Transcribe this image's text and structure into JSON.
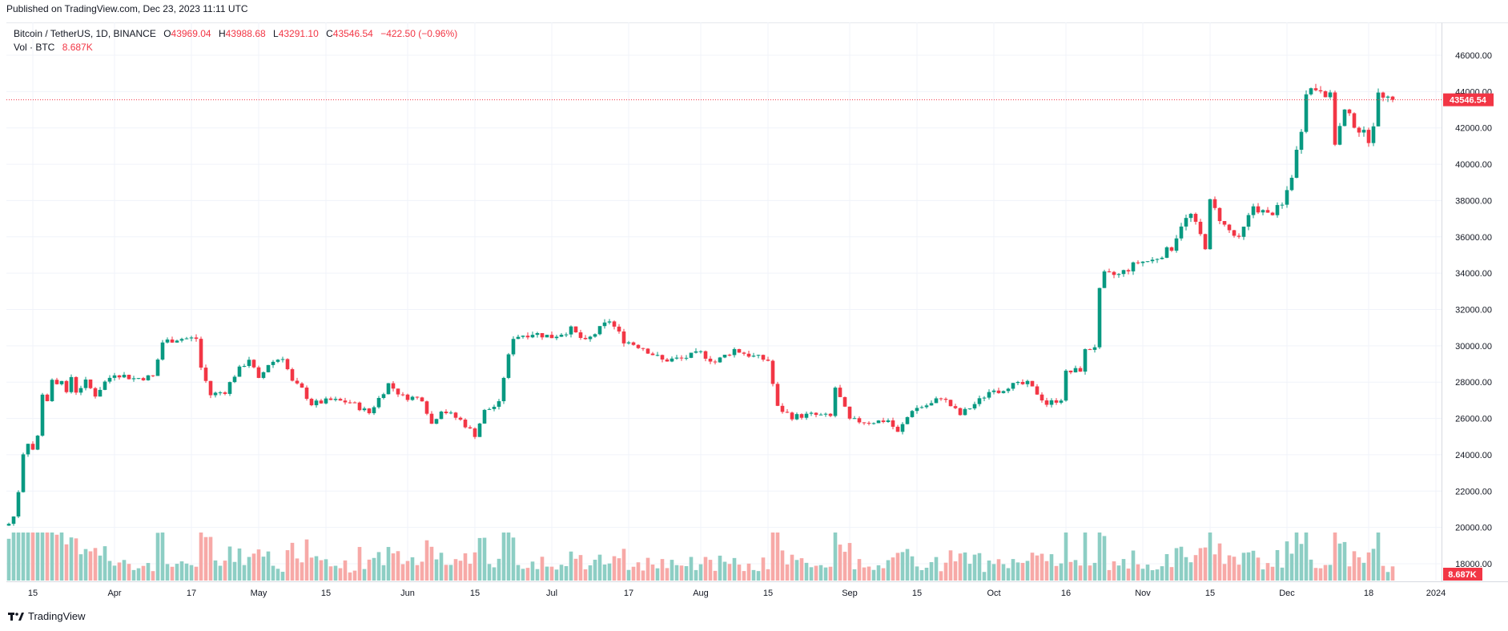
{
  "published": "Published on TradingView.com, Dec 23, 2023 11:11 UTC",
  "legend": {
    "symbol": "Bitcoin / TetherUS, 1D, BINANCE",
    "open_label": "O",
    "open": "43969.04",
    "high_label": "H",
    "high": "43988.68",
    "low_label": "L",
    "low": "43291.10",
    "close_label": "C",
    "close": "43546.54",
    "change": "−422.50 (−0.96%)",
    "volume_label": "Vol · BTC",
    "volume": "8.687K"
  },
  "footer": {
    "brand": "TradingView"
  },
  "colors": {
    "up": "#089981",
    "down": "#f23645",
    "up_volume": "#8dcec4",
    "down_volume": "#f7a9a7",
    "grid": "#f0f3fa",
    "last_price_line": "#f23645"
  },
  "chart_data": {
    "type": "candlestick",
    "symbol": "Bitcoin / TetherUS",
    "interval": "1D",
    "exchange": "BINANCE",
    "ylim": [
      17000,
      47000
    ],
    "y_ticks": [
      18000,
      20000,
      22000,
      24000,
      26000,
      28000,
      30000,
      32000,
      34000,
      36000,
      38000,
      40000,
      42000,
      44000,
      46000
    ],
    "y_tick_labels": [
      "18000.00",
      "20000.00",
      "22000.00",
      "24000.00",
      "26000.00",
      "28000.00",
      "30000.00",
      "32000.00",
      "34000.00",
      "36000.00",
      "38000.00",
      "40000.00",
      "42000.00",
      "44000.00",
      "46000.00"
    ],
    "x_ticks": [
      {
        "date": "2023-03-15",
        "label": "15"
      },
      {
        "date": "2023-04-01",
        "label": "Apr"
      },
      {
        "date": "2023-04-17",
        "label": "17"
      },
      {
        "date": "2023-05-01",
        "label": "May"
      },
      {
        "date": "2023-05-15",
        "label": "15"
      },
      {
        "date": "2023-06-01",
        "label": "Jun"
      },
      {
        "date": "2023-06-15",
        "label": "15"
      },
      {
        "date": "2023-07-01",
        "label": "Jul"
      },
      {
        "date": "2023-07-17",
        "label": "17"
      },
      {
        "date": "2023-08-01",
        "label": "Aug"
      },
      {
        "date": "2023-08-15",
        "label": "15"
      },
      {
        "date": "2023-09-01",
        "label": "Sep"
      },
      {
        "date": "2023-09-15",
        "label": "15"
      },
      {
        "date": "2023-10-01",
        "label": "Oct"
      },
      {
        "date": "2023-10-16",
        "label": "16"
      },
      {
        "date": "2023-11-01",
        "label": "Nov"
      },
      {
        "date": "2023-11-15",
        "label": "15"
      },
      {
        "date": "2023-12-01",
        "label": "Dec"
      },
      {
        "date": "2023-12-18",
        "label": "18"
      },
      {
        "date": "2024-01-01",
        "label": "2024"
      }
    ],
    "x_range": [
      "2023-03-10",
      "2024-01-01"
    ],
    "last_price": 43546.54,
    "last_price_label": "43546.54",
    "last_volume_label": "8.687K",
    "volume_max": 40,
    "close_path": [
      [
        "2023-03-10",
        20200
      ],
      [
        "2023-03-11",
        20600
      ],
      [
        "2023-03-12",
        22000
      ],
      [
        "2023-03-13",
        24100
      ],
      [
        "2023-03-14",
        24700
      ],
      [
        "2023-03-15",
        24300
      ],
      [
        "2023-03-16",
        25000
      ],
      [
        "2023-03-17",
        27400
      ],
      [
        "2023-03-18",
        27000
      ],
      [
        "2023-03-19",
        28000
      ],
      [
        "2023-03-20",
        27800
      ],
      [
        "2023-03-21",
        28200
      ],
      [
        "2023-03-22",
        27300
      ],
      [
        "2023-03-23",
        28300
      ],
      [
        "2023-03-24",
        27500
      ],
      [
        "2023-03-26",
        28000
      ],
      [
        "2023-03-28",
        27300
      ],
      [
        "2023-03-30",
        28000
      ],
      [
        "2023-04-01",
        28500
      ],
      [
        "2023-04-05",
        28200
      ],
      [
        "2023-04-09",
        28300
      ],
      [
        "2023-04-11",
        30200
      ],
      [
        "2023-04-14",
        30400
      ],
      [
        "2023-04-18",
        30400
      ],
      [
        "2023-04-19",
        28800
      ],
      [
        "2023-04-21",
        27300
      ],
      [
        "2023-04-24",
        27500
      ],
      [
        "2023-04-26",
        28400
      ],
      [
        "2023-04-29",
        29300
      ],
      [
        "2023-05-01",
        28100
      ],
      [
        "2023-05-03",
        29000
      ],
      [
        "2023-05-06",
        29400
      ],
      [
        "2023-05-08",
        28000
      ],
      [
        "2023-05-10",
        27600
      ],
      [
        "2023-05-12",
        26800
      ],
      [
        "2023-05-16",
        27000
      ],
      [
        "2023-05-20",
        26900
      ],
      [
        "2023-05-24",
        26300
      ],
      [
        "2023-05-28",
        27900
      ],
      [
        "2023-05-31",
        27200
      ],
      [
        "2023-06-04",
        27100
      ],
      [
        "2023-06-06",
        25700
      ],
      [
        "2023-06-08",
        26500
      ],
      [
        "2023-06-12",
        25900
      ],
      [
        "2023-06-15",
        25100
      ],
      [
        "2023-06-17",
        26400
      ],
      [
        "2023-06-20",
        26800
      ],
      [
        "2023-06-21",
        28300
      ],
      [
        "2023-06-23",
        30500
      ],
      [
        "2023-06-27",
        30700
      ],
      [
        "2023-07-01",
        30500
      ],
      [
        "2023-07-05",
        30900
      ],
      [
        "2023-07-08",
        30200
      ],
      [
        "2023-07-13",
        31400
      ],
      [
        "2023-07-16",
        30300
      ],
      [
        "2023-07-20",
        29900
      ],
      [
        "2023-07-24",
        29200
      ],
      [
        "2023-07-28",
        29300
      ],
      [
        "2023-08-01",
        29600
      ],
      [
        "2023-08-04",
        29100
      ],
      [
        "2023-08-08",
        29800
      ],
      [
        "2023-08-12",
        29400
      ],
      [
        "2023-08-15",
        29200
      ],
      [
        "2023-08-17",
        26600
      ],
      [
        "2023-08-20",
        26100
      ],
      [
        "2023-08-24",
        26200
      ],
      [
        "2023-08-28",
        26100
      ],
      [
        "2023-08-29",
        27700
      ],
      [
        "2023-09-01",
        25900
      ],
      [
        "2023-09-05",
        25800
      ],
      [
        "2023-09-09",
        25900
      ],
      [
        "2023-09-11",
        25200
      ],
      [
        "2023-09-14",
        26500
      ],
      [
        "2023-09-18",
        26800
      ],
      [
        "2023-09-20",
        27200
      ],
      [
        "2023-09-24",
        26200
      ],
      [
        "2023-09-28",
        27000
      ],
      [
        "2023-10-01",
        27700
      ],
      [
        "2023-10-02",
        27500
      ],
      [
        "2023-10-04",
        27800
      ],
      [
        "2023-10-08",
        27900
      ],
      [
        "2023-10-10",
        27400
      ],
      [
        "2023-10-12",
        26800
      ],
      [
        "2023-10-15",
        27100
      ],
      [
        "2023-10-16",
        28500
      ],
      [
        "2023-10-19",
        28700
      ],
      [
        "2023-10-20",
        29700
      ],
      [
        "2023-10-22",
        30000
      ],
      [
        "2023-10-23",
        33000
      ],
      [
        "2023-10-24",
        33900
      ],
      [
        "2023-10-27",
        33900
      ],
      [
        "2023-10-31",
        34600
      ],
      [
        "2023-11-03",
        34700
      ],
      [
        "2023-11-07",
        35400
      ],
      [
        "2023-11-09",
        36700
      ],
      [
        "2023-11-11",
        37200
      ],
      [
        "2023-11-14",
        35500
      ],
      [
        "2023-11-15",
        37900
      ],
      [
        "2023-11-18",
        36600
      ],
      [
        "2023-11-21",
        35800
      ],
      [
        "2023-11-24",
        37700
      ],
      [
        "2023-11-27",
        37200
      ],
      [
        "2023-11-30",
        37700
      ],
      [
        "2023-12-02",
        39400
      ],
      [
        "2023-12-04",
        42000
      ],
      [
        "2023-12-05",
        44100
      ],
      [
        "2023-12-08",
        44200
      ],
      [
        "2023-12-10",
        43700
      ],
      [
        "2023-12-11",
        41200
      ],
      [
        "2023-12-13",
        42900
      ],
      [
        "2023-12-16",
        41900
      ],
      [
        "2023-12-18",
        41400
      ],
      [
        "2023-12-19",
        42300
      ],
      [
        "2023-12-20",
        43700
      ],
      [
        "2023-12-22",
        43970
      ],
      [
        "2023-12-23",
        43546.54
      ]
    ]
  }
}
